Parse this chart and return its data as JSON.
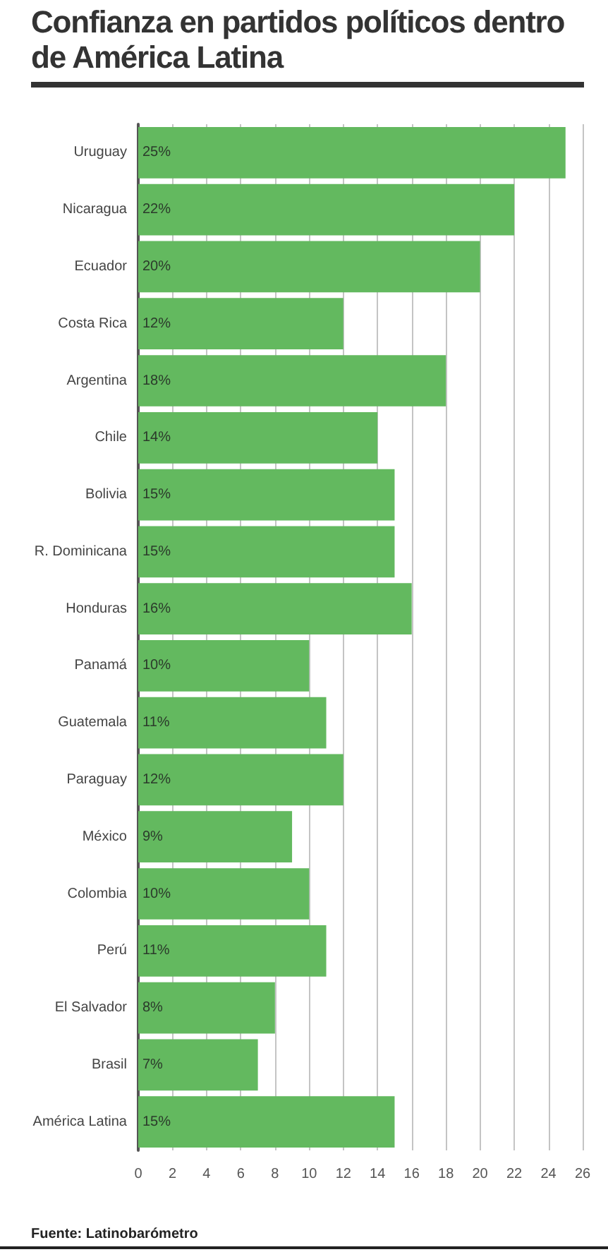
{
  "chart_data": {
    "type": "bar",
    "orientation": "horizontal",
    "title": "Confianza en partidos políticos dentro de América Latina",
    "categories": [
      "Uruguay",
      "Nicaragua",
      "Ecuador",
      "Costa Rica",
      "Argentina",
      "Chile",
      "Bolivia",
      "R. Dominicana",
      "Honduras",
      "Panamá",
      "Guatemala",
      "Paraguay",
      "México",
      "Colombia",
      "Perú",
      "El Salvador",
      "Brasil",
      "América Latina"
    ],
    "values": [
      25,
      22,
      20,
      12,
      18,
      14,
      15,
      15,
      16,
      10,
      11,
      12,
      9,
      10,
      11,
      8,
      7,
      15
    ],
    "value_labels": [
      "25%",
      "22%",
      "20%",
      "12%",
      "18%",
      "14%",
      "15%",
      "15%",
      "16%",
      "10%",
      "11%",
      "12%",
      "9%",
      "10%",
      "11%",
      "8%",
      "7%",
      "15%"
    ],
    "color": "#63b95f",
    "xlim": [
      0,
      26
    ],
    "xticks": [
      0,
      2,
      4,
      6,
      8,
      10,
      12,
      14,
      16,
      18,
      20,
      22,
      24,
      26
    ],
    "grid": "x",
    "annotations": [
      "Fuente: Latinobarómetro"
    ]
  }
}
